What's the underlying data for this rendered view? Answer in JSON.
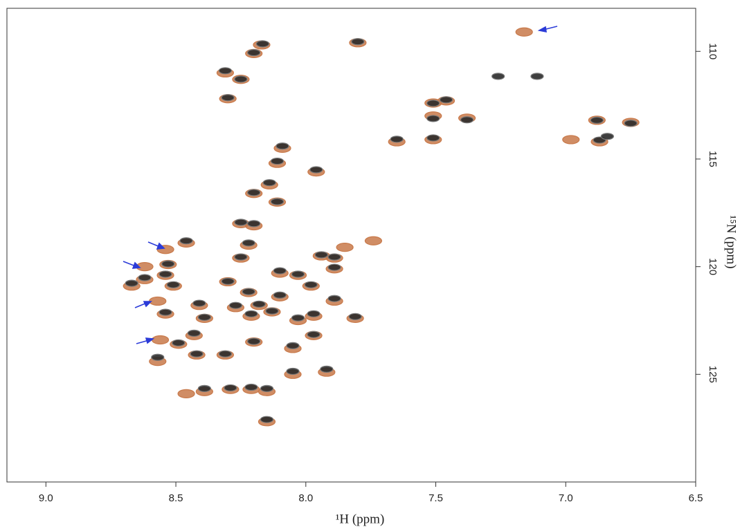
{
  "chart_data": {
    "type": "scatter",
    "x_label": "¹H (ppm)",
    "y_label": "¹⁵N (ppm)",
    "xlim": [
      9.15,
      6.5
    ],
    "ylim": [
      108,
      130
    ],
    "xticks": [
      {
        "value": 9,
        "label": "9.0"
      },
      8.5,
      {
        "value": 8,
        "label": "8.0"
      },
      7.5,
      {
        "value": 7,
        "label": "7.0"
      },
      6.5
    ],
    "yticks": [
      110,
      115,
      120,
      125
    ],
    "series": [
      {
        "color": "#c8794a",
        "x": [
          8.17,
          8.2,
          7.8,
          8.31,
          8.25,
          8.3,
          8.09,
          8.11,
          7.96,
          8.14,
          8.2,
          8.11,
          8.25,
          8.2,
          8.22,
          8.46,
          8.25,
          7.94,
          7.89,
          7.89,
          8.1,
          8.03,
          7.98,
          8.3,
          8.53,
          8.54,
          8.62,
          8.67,
          8.51,
          8.22,
          8.1,
          7.89,
          8.41,
          8.27,
          8.18,
          8.54,
          8.13,
          8.21,
          8.03,
          7.97,
          7.81,
          8.39,
          8.43,
          8.49,
          7.97,
          8.2,
          8.05,
          8.57,
          8.42,
          8.31,
          8.05,
          7.92,
          8.39,
          8.29,
          8.21,
          8.15,
          8.15,
          7.51,
          7.51,
          7.38,
          7.46,
          7.51,
          7.65,
          6.88,
          6.87,
          6.75,
          7.16,
          8.54,
          8.62,
          8.57,
          8.56,
          6.98,
          7.74,
          7.85,
          8.46
        ],
        "values": [
          109.7,
          110.1,
          109.6,
          111,
          111.3,
          112.2,
          114.5,
          115.2,
          115.6,
          116.2,
          116.6,
          117,
          118,
          118.1,
          119,
          118.9,
          119.6,
          119.5,
          119.6,
          120.1,
          120.3,
          120.4,
          120.9,
          120.7,
          119.9,
          120.4,
          120.6,
          120.9,
          120.9,
          121.2,
          121.4,
          121.6,
          121.8,
          121.9,
          121.8,
          122.2,
          122.1,
          122.3,
          122.5,
          122.3,
          122.4,
          122.4,
          123.2,
          123.6,
          123.2,
          123.5,
          123.8,
          124.4,
          124.1,
          124.1,
          125,
          124.9,
          125.8,
          125.7,
          125.7,
          125.8,
          127.2,
          112.4,
          113,
          113.1,
          112.3,
          114.1,
          114.2,
          113.2,
          114.2,
          113.3,
          109.1,
          119.2,
          120,
          121.6,
          123.4,
          114.1,
          118.8,
          119.1,
          125.9
        ]
      },
      {
        "color": "#2a2a2a",
        "x": [
          8.166,
          8.2,
          7.8,
          8.31,
          8.25,
          8.3,
          8.09,
          8.11,
          7.96,
          8.14,
          8.2,
          8.11,
          8.25,
          8.2,
          8.22,
          8.46,
          8.25,
          7.94,
          7.89,
          7.89,
          8.1,
          8.03,
          7.98,
          8.3,
          8.53,
          8.54,
          8.62,
          8.67,
          8.51,
          8.22,
          8.1,
          7.89,
          8.41,
          8.27,
          8.18,
          8.54,
          8.13,
          8.21,
          8.03,
          7.97,
          7.81,
          8.39,
          8.43,
          8.49,
          7.97,
          8.2,
          8.05,
          8.57,
          8.42,
          8.31,
          8.05,
          7.92,
          8.39,
          8.29,
          8.21,
          8.15,
          8.15,
          7.51,
          7.51,
          7.38,
          7.46,
          7.26,
          7.51,
          7.65,
          6.88,
          6.87,
          6.84,
          6.75,
          7.11
        ],
        "values": [
          109.65,
          110.06,
          109.55,
          110.9,
          111.29,
          112.15,
          114.4,
          115.1,
          115.5,
          116.1,
          116.56,
          116.98,
          117.94,
          118,
          118.9,
          118.8,
          119.55,
          119.45,
          119.55,
          120.03,
          120.19,
          120.35,
          120.84,
          120.68,
          119.87,
          120.35,
          120.51,
          120.77,
          120.84,
          121.16,
          121.32,
          121.48,
          121.7,
          121.8,
          121.74,
          122.12,
          122.06,
          122.19,
          122.38,
          122.19,
          122.32,
          122.35,
          123.09,
          123.54,
          123.15,
          123.47,
          123.67,
          124.21,
          124.05,
          124.05,
          124.86,
          124.76,
          125.66,
          125.63,
          125.6,
          125.66,
          127.1,
          112.41,
          113.12,
          113.18,
          112.25,
          111.16,
          114.02,
          114.08,
          113.2,
          114.12,
          113.95,
          113.34,
          111.16
        ]
      }
    ]
  }
}
